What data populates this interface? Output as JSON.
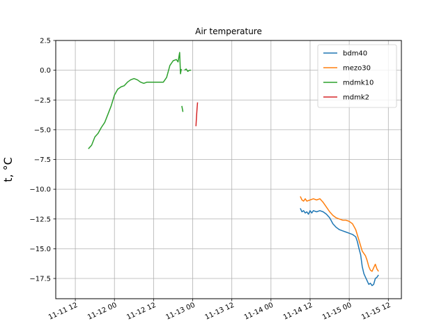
{
  "chart_data": {
    "type": "line",
    "title": "Air temperature",
    "ylabel": "t, °C",
    "xlabel": "",
    "x_is_datetime": true,
    "xlim": [
      "2021-11-11T06:00",
      "2021-11-15T16:00"
    ],
    "ylim": [
      -19.2,
      2.5
    ],
    "xticks": [
      {
        "t": "2021-11-11T12:00",
        "label": "11-11 12"
      },
      {
        "t": "2021-11-12T00:00",
        "label": "11-12 00"
      },
      {
        "t": "2021-11-12T12:00",
        "label": "11-12 12"
      },
      {
        "t": "2021-11-13T00:00",
        "label": "11-13 00"
      },
      {
        "t": "2021-11-13T12:00",
        "label": "11-13 12"
      },
      {
        "t": "2021-11-14T00:00",
        "label": "11-14 00"
      },
      {
        "t": "2021-11-14T12:00",
        "label": "11-14 12"
      },
      {
        "t": "2021-11-15T00:00",
        "label": "11-15 00"
      },
      {
        "t": "2021-11-15T12:00",
        "label": "11-15 12"
      }
    ],
    "yticks": [
      {
        "v": 2.5,
        "label": "2.5"
      },
      {
        "v": 0.0,
        "label": "0.0"
      },
      {
        "v": -2.5,
        "label": "−2.5"
      },
      {
        "v": -5.0,
        "label": "−5.0"
      },
      {
        "v": -7.5,
        "label": "−7.5"
      },
      {
        "v": -10.0,
        "label": "−10.0"
      },
      {
        "v": -12.5,
        "label": "−12.5"
      },
      {
        "v": -15.0,
        "label": "−15.0"
      },
      {
        "v": -17.5,
        "label": "−17.5"
      }
    ],
    "grid": true,
    "legend_position": "top-right",
    "series": [
      {
        "name": "bdm40",
        "color": "#1f77b4",
        "segments": [
          [
            [
              "2021-11-14T09:00",
              -11.6
            ],
            [
              "2021-11-14T09:30",
              -11.9
            ],
            [
              "2021-11-14T10:00",
              -11.8
            ],
            [
              "2021-11-14T10:30",
              -12.0
            ],
            [
              "2021-11-14T11:00",
              -11.9
            ],
            [
              "2021-11-14T11:30",
              -12.1
            ],
            [
              "2021-11-14T12:00",
              -11.8
            ],
            [
              "2021-11-14T12:30",
              -12.0
            ],
            [
              "2021-11-14T13:00",
              -11.8
            ],
            [
              "2021-11-14T14:00",
              -11.9
            ],
            [
              "2021-11-14T15:00",
              -11.8
            ],
            [
              "2021-11-14T16:00",
              -11.9
            ],
            [
              "2021-11-14T17:00",
              -12.1
            ],
            [
              "2021-11-14T18:00",
              -12.4
            ],
            [
              "2021-11-14T19:00",
              -12.9
            ],
            [
              "2021-11-14T20:00",
              -13.2
            ],
            [
              "2021-11-14T21:00",
              -13.4
            ],
            [
              "2021-11-14T22:00",
              -13.5
            ],
            [
              "2021-11-14T23:00",
              -13.6
            ],
            [
              "2021-11-15T00:00",
              -13.7
            ],
            [
              "2021-11-15T01:00",
              -13.8
            ],
            [
              "2021-11-15T02:00",
              -14.0
            ],
            [
              "2021-11-15T02:30",
              -14.4
            ],
            [
              "2021-11-15T03:00",
              -15.0
            ],
            [
              "2021-11-15T03:30",
              -15.5
            ],
            [
              "2021-11-15T04:00",
              -16.5
            ],
            [
              "2021-11-15T04:30",
              -17.1
            ],
            [
              "2021-11-15T05:00",
              -17.4
            ],
            [
              "2021-11-15T05:30",
              -17.7
            ],
            [
              "2021-11-15T06:00",
              -18.0
            ],
            [
              "2021-11-15T06:30",
              -17.9
            ],
            [
              "2021-11-15T07:00",
              -18.1
            ],
            [
              "2021-11-15T07:30",
              -18.0
            ],
            [
              "2021-11-15T08:00",
              -17.5
            ],
            [
              "2021-11-15T08:30",
              -17.4
            ],
            [
              "2021-11-15T09:00",
              -17.2
            ]
          ]
        ]
      },
      {
        "name": "mezo30",
        "color": "#ff7f0e",
        "segments": [
          [
            [
              "2021-11-14T09:00",
              -10.6
            ],
            [
              "2021-11-14T09:30",
              -10.9
            ],
            [
              "2021-11-14T10:00",
              -11.0
            ],
            [
              "2021-11-14T10:30",
              -10.8
            ],
            [
              "2021-11-14T11:00",
              -11.0
            ],
            [
              "2021-11-14T12:00",
              -10.9
            ],
            [
              "2021-11-14T13:00",
              -10.8
            ],
            [
              "2021-11-14T14:00",
              -10.9
            ],
            [
              "2021-11-14T15:00",
              -10.8
            ],
            [
              "2021-11-14T16:00",
              -11.1
            ],
            [
              "2021-11-14T17:00",
              -11.5
            ],
            [
              "2021-11-14T18:00",
              -11.9
            ],
            [
              "2021-11-14T19:00",
              -12.2
            ],
            [
              "2021-11-14T20:00",
              -12.4
            ],
            [
              "2021-11-14T21:00",
              -12.5
            ],
            [
              "2021-11-14T22:00",
              -12.6
            ],
            [
              "2021-11-14T23:00",
              -12.6
            ],
            [
              "2021-11-15T00:00",
              -12.7
            ],
            [
              "2021-11-15T01:00",
              -12.9
            ],
            [
              "2021-11-15T02:00",
              -13.4
            ],
            [
              "2021-11-15T03:00",
              -14.3
            ],
            [
              "2021-11-15T04:00",
              -15.2
            ],
            [
              "2021-11-15T05:00",
              -15.6
            ],
            [
              "2021-11-15T05:30",
              -16.0
            ],
            [
              "2021-11-15T06:00",
              -16.5
            ],
            [
              "2021-11-15T06:30",
              -16.8
            ],
            [
              "2021-11-15T07:00",
              -16.9
            ],
            [
              "2021-11-15T07:30",
              -16.6
            ],
            [
              "2021-11-15T08:00",
              -16.3
            ],
            [
              "2021-11-15T08:30",
              -16.7
            ],
            [
              "2021-11-15T09:00",
              -16.9
            ]
          ]
        ]
      },
      {
        "name": "mdmk10",
        "color": "#2ca02c",
        "segments": [
          [
            [
              "2021-11-11T16:00",
              -6.6
            ],
            [
              "2021-11-11T17:00",
              -6.3
            ],
            [
              "2021-11-11T18:00",
              -5.6
            ],
            [
              "2021-11-11T19:00",
              -5.3
            ],
            [
              "2021-11-11T20:00",
              -4.8
            ],
            [
              "2021-11-11T21:00",
              -4.4
            ],
            [
              "2021-11-11T22:00",
              -3.7
            ],
            [
              "2021-11-11T23:00",
              -3.0
            ],
            [
              "2021-11-12T00:00",
              -2.1
            ],
            [
              "2021-11-12T01:00",
              -1.6
            ],
            [
              "2021-11-12T02:00",
              -1.4
            ],
            [
              "2021-11-12T03:00",
              -1.3
            ],
            [
              "2021-11-12T04:00",
              -1.0
            ],
            [
              "2021-11-12T05:00",
              -0.8
            ],
            [
              "2021-11-12T06:00",
              -0.7
            ],
            [
              "2021-11-12T07:00",
              -0.8
            ],
            [
              "2021-11-12T08:00",
              -1.0
            ],
            [
              "2021-11-12T09:00",
              -1.1
            ],
            [
              "2021-11-12T10:00",
              -1.0
            ],
            [
              "2021-11-12T11:00",
              -1.0
            ],
            [
              "2021-11-12T12:00",
              -1.0
            ],
            [
              "2021-11-12T13:00",
              -1.0
            ],
            [
              "2021-11-12T14:00",
              -1.0
            ],
            [
              "2021-11-12T15:00",
              -1.0
            ],
            [
              "2021-11-12T16:00",
              -0.6
            ],
            [
              "2021-11-12T17:00",
              0.4
            ],
            [
              "2021-11-12T18:00",
              0.8
            ],
            [
              "2021-11-12T19:00",
              0.9
            ],
            [
              "2021-11-12T19:30",
              0.7
            ],
            [
              "2021-11-12T20:00",
              1.5
            ],
            [
              "2021-11-12T20:15",
              -0.3
            ],
            [
              "2021-11-12T20:30",
              0.1
            ]
          ],
          [
            [
              "2021-11-12T20:40",
              -3.0
            ],
            [
              "2021-11-12T21:00",
              -3.5
            ]
          ],
          [
            [
              "2021-11-12T21:30",
              0.0
            ],
            [
              "2021-11-12T22:00",
              0.1
            ],
            [
              "2021-11-12T22:30",
              -0.1
            ],
            [
              "2021-11-12T23:00",
              0.0
            ],
            [
              "2021-11-12T23:30",
              0.0
            ]
          ]
        ]
      },
      {
        "name": "mdmk2",
        "color": "#d62728",
        "segments": [
          [
            [
              "2021-11-13T01:00",
              -4.7
            ],
            [
              "2021-11-13T01:10",
              -3.9
            ],
            [
              "2021-11-13T01:20",
              -3.2
            ],
            [
              "2021-11-13T01:30",
              -2.7
            ]
          ]
        ]
      }
    ]
  }
}
